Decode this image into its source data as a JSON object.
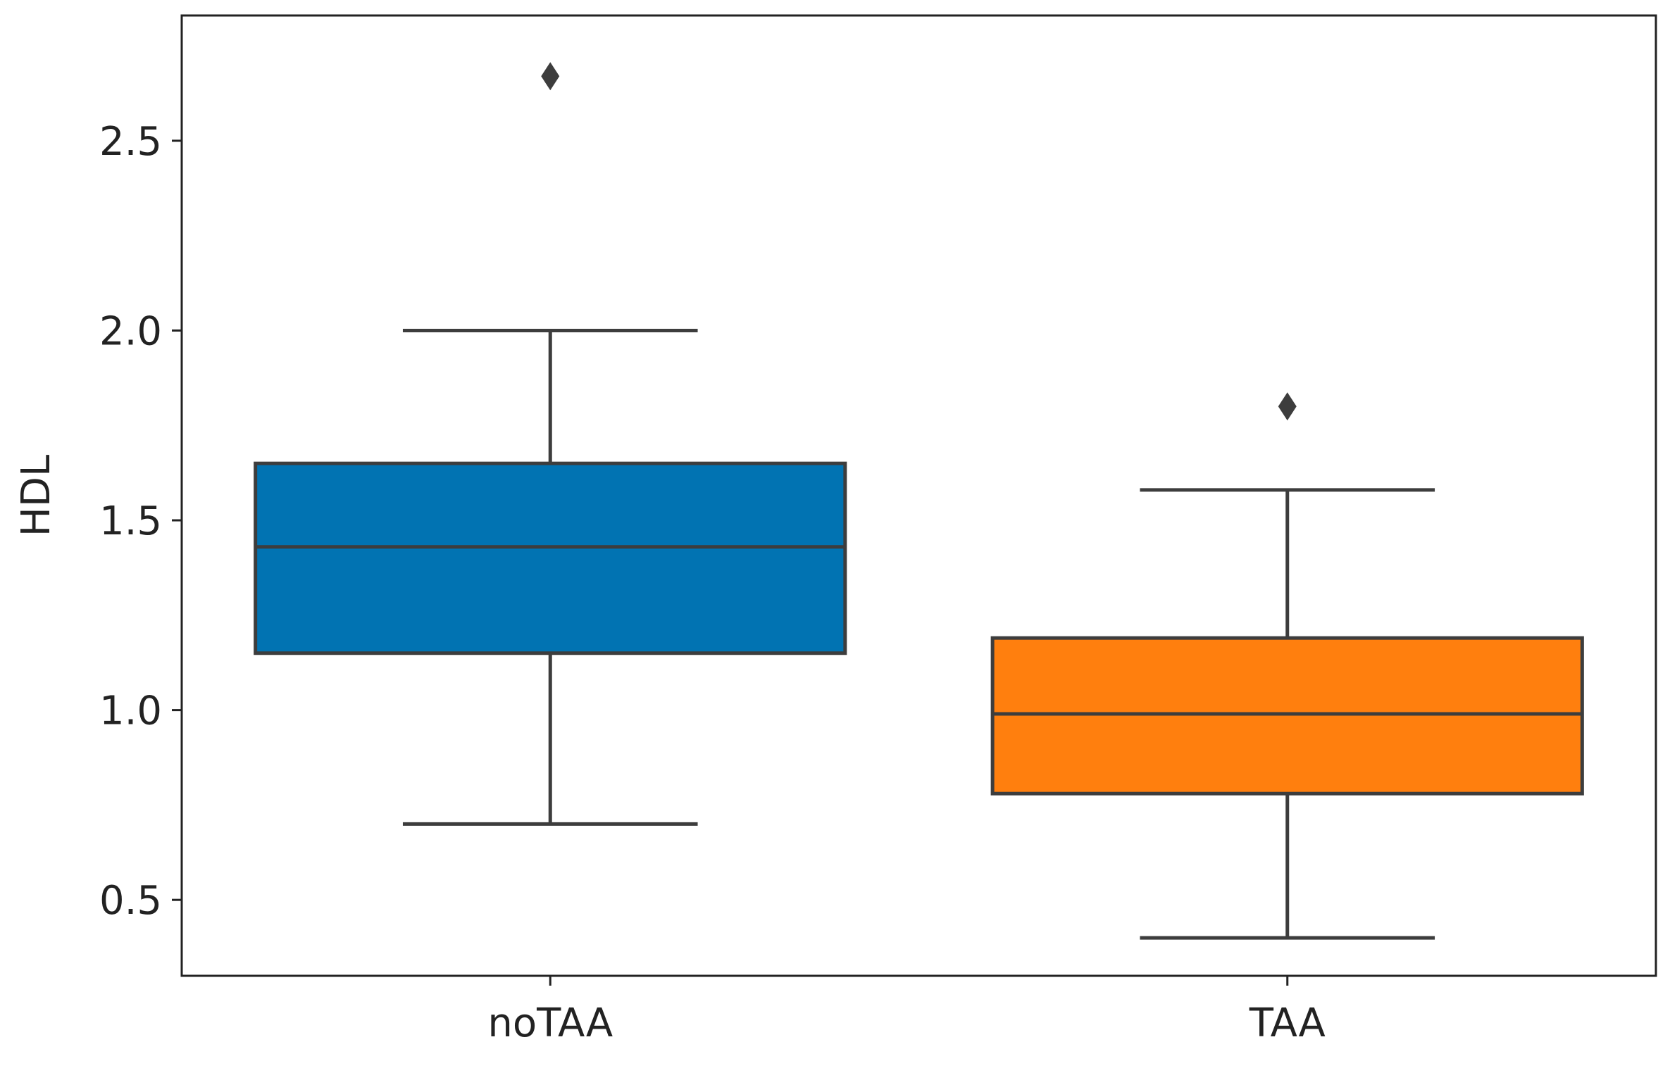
{
  "chart_data": {
    "type": "box",
    "title": "",
    "xlabel": "",
    "ylabel": "HDL",
    "ylim": [
      0.3,
      2.83
    ],
    "yticks": [
      0.5,
      1.0,
      1.5,
      2.0,
      2.5
    ],
    "ytick_labels": [
      "0.5",
      "1.0",
      "1.5",
      "2.0",
      "2.5"
    ],
    "grid": false,
    "categories": [
      "noTAA",
      "TAA"
    ],
    "boxes": [
      {
        "name": "noTAA",
        "color": "#0173B2",
        "whisker_low": 0.7,
        "q1": 1.15,
        "median": 1.43,
        "q3": 1.65,
        "whisker_high": 2.0,
        "outliers": [
          2.67
        ]
      },
      {
        "name": "TAA",
        "color": "#FF7F0E",
        "whisker_low": 0.4,
        "q1": 0.78,
        "median": 0.99,
        "q3": 1.19,
        "whisker_high": 1.58,
        "outliers": [
          1.8
        ]
      }
    ],
    "line_color": "#3d3d3d"
  }
}
